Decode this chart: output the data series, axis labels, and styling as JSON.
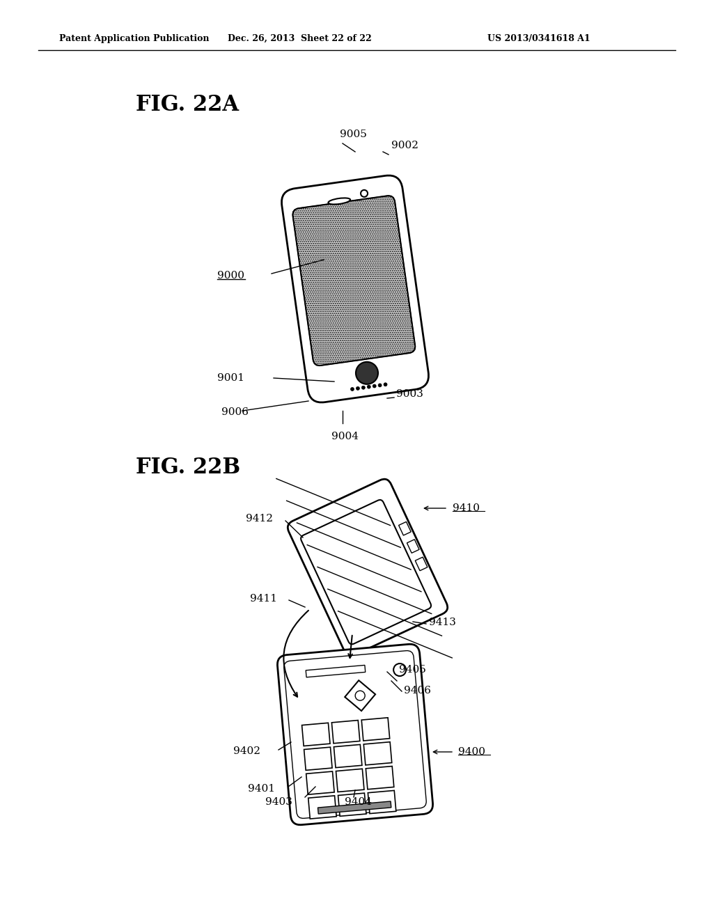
{
  "header_left": "Patent Application Publication",
  "header_center": "Dec. 26, 2013  Sheet 22 of 22",
  "header_right": "US 2013/0341618 A1",
  "fig22a_title": "FIG. 22A",
  "fig22b_title": "FIG. 22B",
  "bg_color": "#ffffff",
  "line_color": "#000000",
  "label_9000": "9000",
  "label_9001": "9001",
  "label_9002": "9002",
  "label_9003": "9003",
  "label_9004": "9004",
  "label_9005": "9005",
  "label_9006": "9006",
  "label_9400": "9400",
  "label_9401": "9401",
  "label_9402": "9402",
  "label_9403": "9403",
  "label_9404": "9404",
  "label_9405": "9405",
  "label_9406": "9406",
  "label_9410": "9410",
  "label_9411": "9411",
  "label_9412": "9412",
  "label_9413": "9413"
}
